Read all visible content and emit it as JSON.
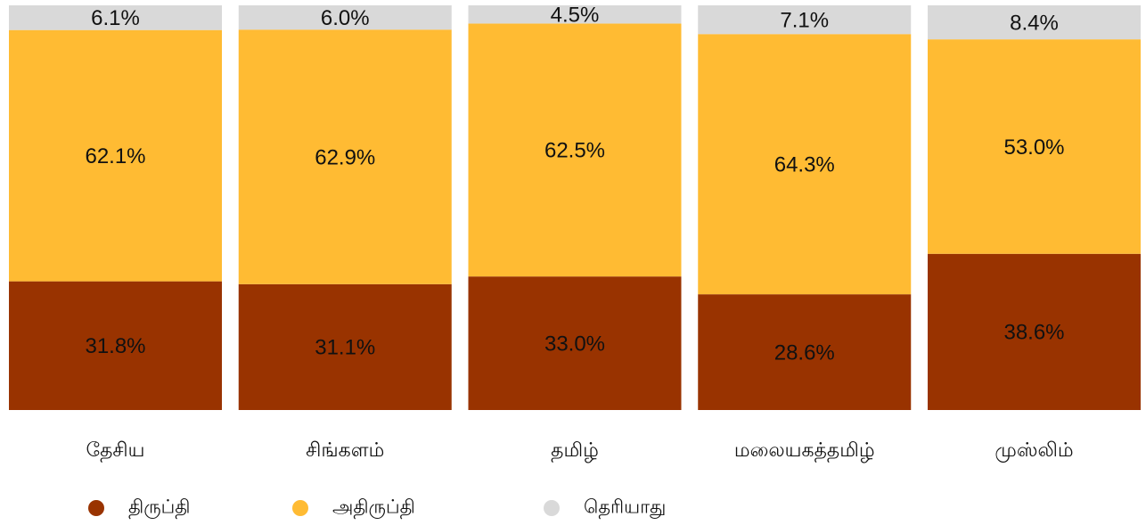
{
  "chart_data": {
    "type": "stacked-bar",
    "categories": [
      "தேசிய",
      "சிங்களம்",
      "தமிழ்",
      "மலையகத்தமிழ்",
      "முஸ்லிம்"
    ],
    "series": [
      {
        "name": "திருப்தி",
        "color": "#993300",
        "values": [
          31.8,
          31.1,
          33.0,
          28.6,
          38.6
        ],
        "value_labels": [
          "31.8%",
          "31.1%",
          "33.0%",
          "28.6%",
          "38.6%"
        ]
      },
      {
        "name": "அதிருப்தி",
        "color": "#ffbb33",
        "values": [
          62.1,
          62.9,
          62.5,
          64.3,
          53.0
        ],
        "value_labels": [
          "62.1%",
          "62.9%",
          "62.5%",
          "64.3%",
          "53.0%"
        ]
      },
      {
        "name": "தெரியாது",
        "color": "#d9d9d9",
        "values": [
          6.1,
          6.0,
          4.5,
          7.1,
          8.4
        ],
        "value_labels": [
          "6.1%",
          "6.0%",
          "4.5%",
          "7.1%",
          "8.4%"
        ]
      }
    ],
    "ylim": [
      0,
      100
    ]
  }
}
